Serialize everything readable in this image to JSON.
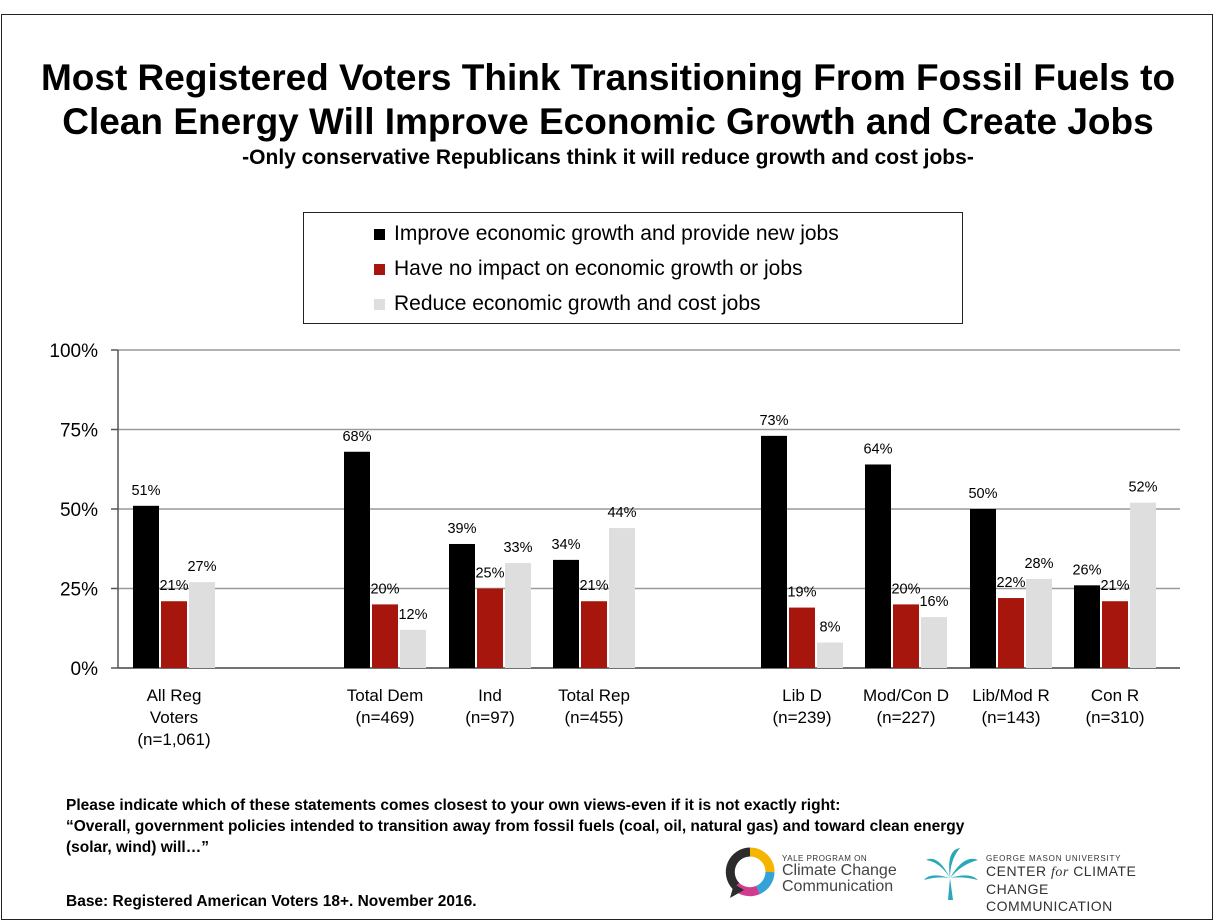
{
  "title_line1": "Most Registered Voters Think Transitioning From Fossil Fuels to",
  "title_line2": "Clean Energy Will Improve Economic Growth and Create Jobs",
  "subtitle": "-Only conservative Republicans think it will reduce growth and cost jobs-",
  "legend": [
    {
      "label": "Improve economic growth and provide new jobs",
      "color": "#000000"
    },
    {
      "label": "Have no impact on economic growth or jobs",
      "color": "#a6160c"
    },
    {
      "label": "Reduce economic growth and cost jobs",
      "color": "#dedede"
    }
  ],
  "chart_data": {
    "type": "bar",
    "ylim": [
      0,
      100
    ],
    "yticks": [
      "0%",
      "25%",
      "50%",
      "75%",
      "100%"
    ],
    "tick_values": [
      0,
      25,
      50,
      75,
      100
    ],
    "grid": true,
    "legend_position": "top",
    "categories": [
      [
        "All Reg",
        "Voters",
        "(n=1,061)"
      ],
      [
        "Total Dem",
        "(n=469)"
      ],
      [
        "Ind",
        "(n=97)"
      ],
      [
        "Total Rep",
        "(n=455)"
      ],
      [
        "Lib D",
        "(n=239)"
      ],
      [
        "Mod/Con D",
        "(n=227)"
      ],
      [
        "Lib/Mod R",
        "(n=143)"
      ],
      [
        "Con R",
        "(n=310)"
      ]
    ],
    "series": [
      {
        "name": "Improve economic growth and provide new jobs",
        "color": "#000000",
        "values": [
          51,
          68,
          39,
          34,
          73,
          64,
          50,
          26
        ],
        "labels": [
          "51%",
          "68%",
          "39%",
          "34%",
          "73%",
          "64%",
          "50%",
          "26%"
        ]
      },
      {
        "name": "Have no impact on economic growth or jobs",
        "color": "#a6160c",
        "values": [
          21,
          20,
          25,
          21,
          19,
          20,
          22,
          21
        ],
        "labels": [
          "21%",
          "20%",
          "25%",
          "21%",
          "19%",
          "20%",
          "22%",
          "21%"
        ]
      },
      {
        "name": "Reduce economic growth and cost jobs",
        "color": "#dedede",
        "values": [
          27,
          12,
          33,
          44,
          8,
          16,
          28,
          52
        ],
        "labels": [
          "27%",
          "12%",
          "33%",
          "44%",
          "8%",
          "16%",
          "28%",
          "52%"
        ]
      }
    ]
  },
  "question_line1": "Please indicate which of these statements comes closest to your own views-even if it is not exactly right:",
  "question_line2": "“Overall, government policies intended to transition away from fossil fuels (coal, oil, natural gas) and toward clean energy",
  "question_line3": "(solar, wind) will…”",
  "base": "Base: Registered American Voters 18+. November 2016.",
  "logo_yale": {
    "small": "YALE PROGRAM ON",
    "line1": "Climate Change",
    "line2": "Communication"
  },
  "logo_gmu": {
    "small": "GEORGE MASON UNIVERSITY",
    "line1_a": "CENTER",
    "line1_b": "for",
    "line1_c": "CLIMATE CHANGE",
    "line2": "COMMUNICATION"
  }
}
